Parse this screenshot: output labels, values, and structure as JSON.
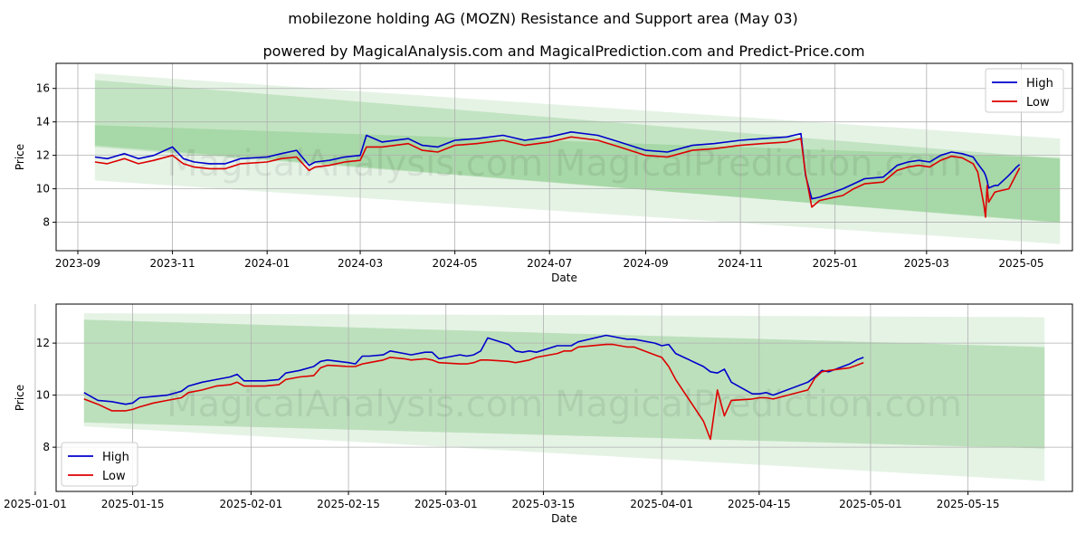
{
  "figure": {
    "title": "mobilezone holding AG (MOZN) Resistance and Support area (May 03)",
    "subtitle": "powered by MagicalAnalysis.com and MagicalPrediction.com and Predict-Price.com",
    "watermark": "MagicalAnalysis.com    MagicalPrediction.com",
    "colors": {
      "high": "#0000cc",
      "low": "#dd0000",
      "band": "#2ca02c",
      "grid": "#b0b0b0"
    }
  },
  "chart_data": [
    {
      "type": "line",
      "xlabel": "Date",
      "ylabel": "Price",
      "xlim": [
        "2023-08-18",
        "2025-06-03"
      ],
      "ylim": [
        6.3,
        17.5
      ],
      "xticks": [
        "2023-09",
        "2023-11",
        "2024-01",
        "2024-03",
        "2024-05",
        "2024-07",
        "2024-09",
        "2024-11",
        "2025-01",
        "2025-03",
        "2025-05"
      ],
      "yticks": [
        8,
        10,
        12,
        14,
        16
      ],
      "grid": true,
      "legend_position": "top-right",
      "bands": [
        {
          "x": [
            "2023-09-12",
            "2025-05-26"
          ],
          "upper": [
            16.9,
            13.0
          ],
          "lower": [
            10.5,
            6.7
          ],
          "opacity": 0.12
        },
        {
          "x": [
            "2023-09-12",
            "2025-05-26"
          ],
          "upper": [
            16.5,
            11.8
          ],
          "lower": [
            12.5,
            8.0
          ],
          "opacity": 0.18
        },
        {
          "x": [
            "2023-09-12",
            "2025-05-26"
          ],
          "upper": [
            13.8,
            11.85
          ],
          "lower": [
            12.6,
            7.95
          ],
          "opacity": 0.18
        }
      ],
      "series": [
        {
          "name": "High",
          "x": [
            "2023-09-12",
            "2023-09-20",
            "2023-10-01",
            "2023-10-10",
            "2023-10-20",
            "2023-11-01",
            "2023-11-08",
            "2023-11-15",
            "2023-11-25",
            "2023-12-05",
            "2023-12-15",
            "2024-01-01",
            "2024-01-10",
            "2024-01-20",
            "2024-01-28",
            "2024-02-01",
            "2024-02-10",
            "2024-02-20",
            "2024-03-01",
            "2024-03-05",
            "2024-03-15",
            "2024-04-01",
            "2024-04-10",
            "2024-04-20",
            "2024-05-01",
            "2024-05-15",
            "2024-06-01",
            "2024-06-15",
            "2024-07-01",
            "2024-07-15",
            "2024-08-01",
            "2024-08-15",
            "2024-09-01",
            "2024-09-15",
            "2024-10-01",
            "2024-10-15",
            "2024-11-01",
            "2024-11-15",
            "2024-12-01",
            "2024-12-10",
            "2024-12-13",
            "2024-12-17",
            "2024-12-22",
            "2025-01-06",
            "2025-01-13",
            "2025-01-20",
            "2025-02-01",
            "2025-02-10",
            "2025-02-17",
            "2025-02-24",
            "2025-03-03",
            "2025-03-10",
            "2025-03-17",
            "2025-03-24",
            "2025-03-31",
            "2025-04-03",
            "2025-04-07",
            "2025-04-08",
            "2025-04-09",
            "2025-04-10",
            "2025-04-14",
            "2025-04-16",
            "2025-04-23",
            "2025-04-28",
            "2025-04-30"
          ],
          "values": [
            11.9,
            11.8,
            12.1,
            11.8,
            12.0,
            12.5,
            11.8,
            11.6,
            11.5,
            11.5,
            11.8,
            11.9,
            12.1,
            12.3,
            11.4,
            11.6,
            11.7,
            11.9,
            12.0,
            13.2,
            12.8,
            13.0,
            12.6,
            12.5,
            12.9,
            13.0,
            13.2,
            12.9,
            13.1,
            13.4,
            13.2,
            12.8,
            12.3,
            12.2,
            12.6,
            12.7,
            12.9,
            13.0,
            13.1,
            13.3,
            10.8,
            9.4,
            9.5,
            10.0,
            10.3,
            10.6,
            10.7,
            11.4,
            11.6,
            11.7,
            11.6,
            12.0,
            12.2,
            12.1,
            11.9,
            11.5,
            11.0,
            10.8,
            10.5,
            10.05,
            10.2,
            10.2,
            10.8,
            11.3,
            11.45
          ]
        },
        {
          "name": "Low",
          "x": [
            "2023-09-12",
            "2023-09-20",
            "2023-10-01",
            "2023-10-10",
            "2023-10-20",
            "2023-11-01",
            "2023-11-08",
            "2023-11-15",
            "2023-11-25",
            "2023-12-05",
            "2023-12-15",
            "2024-01-01",
            "2024-01-10",
            "2024-01-20",
            "2024-01-28",
            "2024-02-01",
            "2024-02-10",
            "2024-02-20",
            "2024-03-01",
            "2024-03-05",
            "2024-03-15",
            "2024-04-01",
            "2024-04-10",
            "2024-04-20",
            "2024-05-01",
            "2024-05-15",
            "2024-06-01",
            "2024-06-15",
            "2024-07-01",
            "2024-07-15",
            "2024-08-01",
            "2024-08-15",
            "2024-09-01",
            "2024-09-15",
            "2024-10-01",
            "2024-10-15",
            "2024-11-01",
            "2024-11-15",
            "2024-12-01",
            "2024-12-10",
            "2024-12-13",
            "2024-12-17",
            "2024-12-22",
            "2025-01-06",
            "2025-01-13",
            "2025-01-20",
            "2025-02-01",
            "2025-02-10",
            "2025-02-17",
            "2025-02-24",
            "2025-03-03",
            "2025-03-10",
            "2025-03-17",
            "2025-03-24",
            "2025-03-31",
            "2025-04-03",
            "2025-04-07",
            "2025-04-08",
            "2025-04-09",
            "2025-04-10",
            "2025-04-14",
            "2025-04-16",
            "2025-04-23",
            "2025-04-28",
            "2025-04-30"
          ],
          "values": [
            11.6,
            11.5,
            11.8,
            11.5,
            11.7,
            12.0,
            11.5,
            11.3,
            11.2,
            11.2,
            11.5,
            11.6,
            11.8,
            11.9,
            11.1,
            11.3,
            11.4,
            11.6,
            11.7,
            12.5,
            12.5,
            12.7,
            12.3,
            12.2,
            12.6,
            12.7,
            12.9,
            12.6,
            12.8,
            13.1,
            12.9,
            12.5,
            12.0,
            11.9,
            12.3,
            12.4,
            12.6,
            12.7,
            12.8,
            13.0,
            10.9,
            8.9,
            9.3,
            9.6,
            10.0,
            10.3,
            10.4,
            11.1,
            11.3,
            11.4,
            11.3,
            11.7,
            11.95,
            11.85,
            11.5,
            11.0,
            9.0,
            8.3,
            10.2,
            9.2,
            9.8,
            9.85,
            10.0,
            10.9,
            11.25
          ]
        }
      ]
    },
    {
      "type": "line",
      "xlabel": "Date",
      "ylabel": "Price",
      "xlim": [
        "2025-01-04",
        "2025-05-30"
      ],
      "ylim": [
        6.3,
        13.5
      ],
      "xticks": [
        "2025-01-01",
        "2025-01-15",
        "2025-02-01",
        "2025-02-15",
        "2025-03-01",
        "2025-03-15",
        "2025-04-01",
        "2025-04-15",
        "2025-05-01",
        "2025-05-15"
      ],
      "yticks": [
        8,
        10,
        12
      ],
      "grid": true,
      "legend_position": "bottom-left",
      "bands": [
        {
          "x": [
            "2025-01-08",
            "2025-05-26"
          ],
          "upper": [
            13.15,
            13.0
          ],
          "lower": [
            8.8,
            6.7
          ],
          "opacity": 0.12
        },
        {
          "x": [
            "2025-01-08",
            "2025-05-26"
          ],
          "upper": [
            12.9,
            11.85
          ],
          "lower": [
            8.95,
            7.95
          ],
          "opacity": 0.22
        }
      ],
      "series": [
        {
          "name": "High",
          "x": [
            "2025-01-08",
            "2025-01-10",
            "2025-01-12",
            "2025-01-13",
            "2025-01-14",
            "2025-01-15",
            "2025-01-16",
            "2025-01-18",
            "2025-01-20",
            "2025-01-22",
            "2025-01-23",
            "2025-01-25",
            "2025-01-27",
            "2025-01-29",
            "2025-01-30",
            "2025-01-31",
            "2025-02-03",
            "2025-02-05",
            "2025-02-06",
            "2025-02-08",
            "2025-02-10",
            "2025-02-11",
            "2025-02-12",
            "2025-02-15",
            "2025-02-16",
            "2025-02-17",
            "2025-02-18",
            "2025-02-20",
            "2025-02-21",
            "2025-02-23",
            "2025-02-24",
            "2025-02-26",
            "2025-02-27",
            "2025-02-28",
            "2025-03-03",
            "2025-03-04",
            "2025-03-05",
            "2025-03-06",
            "2025-03-07",
            "2025-03-10",
            "2025-03-11",
            "2025-03-12",
            "2025-03-13",
            "2025-03-14",
            "2025-03-17",
            "2025-03-18",
            "2025-03-19",
            "2025-03-20",
            "2025-03-24",
            "2025-03-25",
            "2025-03-26",
            "2025-03-27",
            "2025-03-28",
            "2025-03-31",
            "2025-04-01",
            "2025-04-02",
            "2025-04-03",
            "2025-04-07",
            "2025-04-08",
            "2025-04-09",
            "2025-04-10",
            "2025-04-11",
            "2025-04-14",
            "2025-04-15",
            "2025-04-16",
            "2025-04-17",
            "2025-04-22",
            "2025-04-23",
            "2025-04-24",
            "2025-04-25",
            "2025-04-28",
            "2025-04-29",
            "2025-04-30"
          ],
          "values": [
            10.1,
            9.8,
            9.75,
            9.7,
            9.65,
            9.7,
            9.9,
            9.95,
            10.0,
            10.15,
            10.35,
            10.5,
            10.6,
            10.7,
            10.8,
            10.55,
            10.55,
            10.6,
            10.85,
            10.95,
            11.1,
            11.3,
            11.35,
            11.25,
            11.2,
            11.5,
            11.5,
            11.55,
            11.7,
            11.6,
            11.55,
            11.65,
            11.65,
            11.4,
            11.55,
            11.5,
            11.55,
            11.7,
            12.2,
            11.95,
            11.7,
            11.65,
            11.7,
            11.65,
            11.9,
            11.9,
            11.9,
            12.05,
            12.3,
            12.25,
            12.2,
            12.15,
            12.15,
            12.0,
            11.9,
            11.95,
            11.6,
            11.1,
            10.9,
            10.85,
            11.0,
            10.5,
            10.05,
            10.05,
            10.1,
            10.0,
            10.5,
            10.7,
            10.95,
            10.9,
            11.2,
            11.35,
            11.45
          ]
        },
        {
          "name": "Low",
          "x": [
            "2025-01-08",
            "2025-01-10",
            "2025-01-12",
            "2025-01-13",
            "2025-01-14",
            "2025-01-15",
            "2025-01-16",
            "2025-01-18",
            "2025-01-20",
            "2025-01-22",
            "2025-01-23",
            "2025-01-25",
            "2025-01-27",
            "2025-01-29",
            "2025-01-30",
            "2025-01-31",
            "2025-02-03",
            "2025-02-05",
            "2025-02-06",
            "2025-02-08",
            "2025-02-10",
            "2025-02-11",
            "2025-02-12",
            "2025-02-15",
            "2025-02-16",
            "2025-02-17",
            "2025-02-18",
            "2025-02-20",
            "2025-02-21",
            "2025-02-23",
            "2025-02-24",
            "2025-02-26",
            "2025-02-27",
            "2025-02-28",
            "2025-03-03",
            "2025-03-04",
            "2025-03-05",
            "2025-03-06",
            "2025-03-07",
            "2025-03-10",
            "2025-03-11",
            "2025-03-12",
            "2025-03-13",
            "2025-03-14",
            "2025-03-17",
            "2025-03-18",
            "2025-03-19",
            "2025-03-20",
            "2025-03-24",
            "2025-03-25",
            "2025-03-26",
            "2025-03-27",
            "2025-03-28",
            "2025-03-31",
            "2025-04-01",
            "2025-04-02",
            "2025-04-03",
            "2025-04-07",
            "2025-04-08",
            "2025-04-09",
            "2025-04-10",
            "2025-04-11",
            "2025-04-14",
            "2025-04-15",
            "2025-04-16",
            "2025-04-17",
            "2025-04-22",
            "2025-04-23",
            "2025-04-24",
            "2025-04-25",
            "2025-04-28",
            "2025-04-29",
            "2025-04-30"
          ],
          "values": [
            9.85,
            9.65,
            9.4,
            9.4,
            9.4,
            9.45,
            9.55,
            9.7,
            9.8,
            9.9,
            10.1,
            10.2,
            10.35,
            10.4,
            10.5,
            10.35,
            10.35,
            10.4,
            10.6,
            10.7,
            10.75,
            11.05,
            11.15,
            11.1,
            11.1,
            11.2,
            11.25,
            11.35,
            11.45,
            11.4,
            11.35,
            11.4,
            11.35,
            11.25,
            11.2,
            11.2,
            11.25,
            11.35,
            11.35,
            11.3,
            11.25,
            11.3,
            11.35,
            11.45,
            11.6,
            11.7,
            11.7,
            11.85,
            11.95,
            11.95,
            11.9,
            11.85,
            11.85,
            11.55,
            11.45,
            11.1,
            10.6,
            9.0,
            8.3,
            10.2,
            9.2,
            9.8,
            9.85,
            9.9,
            9.9,
            9.85,
            10.2,
            10.65,
            10.9,
            10.95,
            11.05,
            11.15,
            11.25
          ]
        }
      ]
    }
  ]
}
